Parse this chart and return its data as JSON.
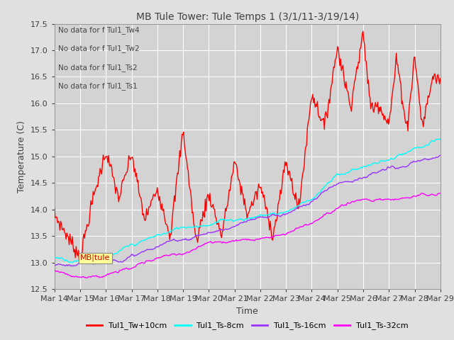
{
  "title": "MB Tule Tower: Tule Temps 1 (3/1/11-3/19/14)",
  "xlabel": "Time",
  "ylabel": "Temperature (C)",
  "ylim": [
    12.5,
    17.5
  ],
  "xlim": [
    0,
    15
  ],
  "xtick_labels": [
    "Mar 14",
    "Mar 15",
    "Mar 16",
    "Mar 17",
    "Mar 18",
    "Mar 19",
    "Mar 20",
    "Mar 21",
    "Mar 22",
    "Mar 23",
    "Mar 24",
    "Mar 25",
    "Mar 26",
    "Mar 27",
    "Mar 28",
    "Mar 29"
  ],
  "ytick_values": [
    12.5,
    13.0,
    13.5,
    14.0,
    14.5,
    15.0,
    15.5,
    16.0,
    16.5,
    17.0,
    17.5
  ],
  "no_data_lines": [
    "No data for f Tul1_Tw4",
    "No data for f Tul1_Tw2",
    "No data for f Tul1_Ts2",
    "No data for f Tul1_Ts1"
  ],
  "legend_entries": [
    {
      "label": "Tul1_Tw+10cm",
      "color": "#ff0000"
    },
    {
      "label": "Tul1_Ts-8cm",
      "color": "#00ffff"
    },
    {
      "label": "Tul1_Ts-16cm",
      "color": "#9933ff"
    },
    {
      "label": "Tul1_Ts-32cm",
      "color": "#ff00ff"
    }
  ],
  "bg_color": "#e0e0e0",
  "plot_bg_color": "#d3d3d3",
  "grid_color": "#ffffff",
  "title_color": "#404040",
  "annotation_box_color": "#ffff99",
  "annotation_text": "MB|tule",
  "tooltip_x": 1.0,
  "tooltip_y": 13.05
}
